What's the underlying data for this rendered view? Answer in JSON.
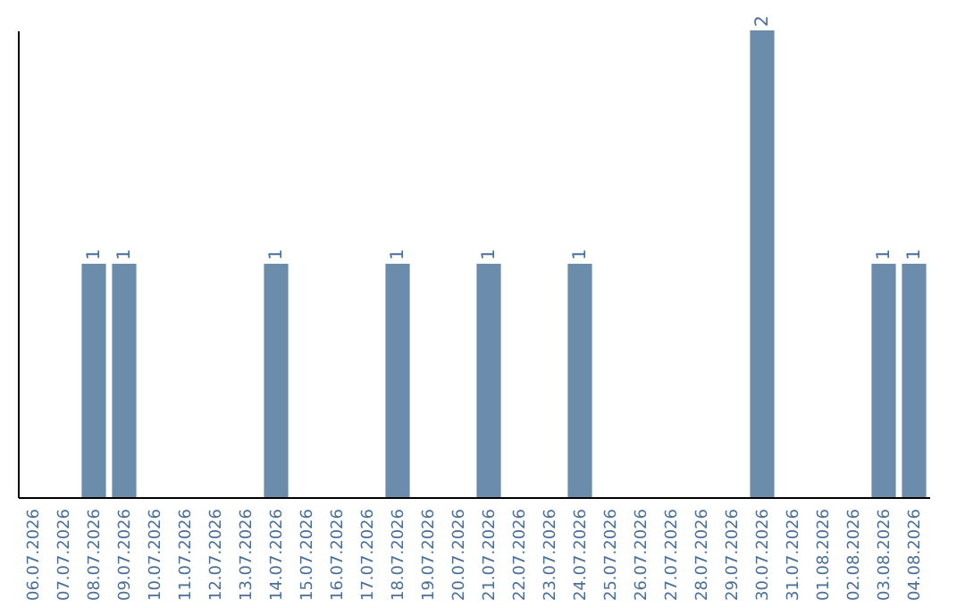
{
  "chart_data": {
    "type": "bar",
    "categories": [
      "06.07.2026",
      "07.07.2026",
      "08.07.2026",
      "09.07.2026",
      "10.07.2026",
      "11.07.2026",
      "12.07.2026",
      "13.07.2026",
      "14.07.2026",
      "15.07.2026",
      "16.07.2026",
      "17.07.2026",
      "18.07.2026",
      "19.07.2026",
      "20.07.2026",
      "21.07.2026",
      "22.07.2026",
      "23.07.2026",
      "24.07.2026",
      "25.07.2026",
      "26.07.2026",
      "27.07.2026",
      "28.07.2026",
      "29.07.2026",
      "30.07.2026",
      "31.07.2026",
      "01.08.2026",
      "02.08.2026",
      "03.08.2026",
      "04.08.2026"
    ],
    "values": [
      0,
      0,
      1,
      1,
      0,
      0,
      0,
      0,
      1,
      0,
      0,
      0,
      1,
      0,
      0,
      1,
      0,
      0,
      1,
      0,
      0,
      0,
      0,
      0,
      2,
      0,
      0,
      0,
      1,
      1
    ],
    "value_labels": [
      null,
      null,
      "1",
      "1",
      null,
      null,
      null,
      null,
      "1",
      null,
      null,
      null,
      "1",
      null,
      null,
      "1",
      null,
      null,
      "1",
      null,
      null,
      null,
      null,
      null,
      "2",
      null,
      null,
      null,
      "1",
      "1"
    ],
    "color": "#6b8cab",
    "tick_labels": "x",
    "grid": false
  }
}
